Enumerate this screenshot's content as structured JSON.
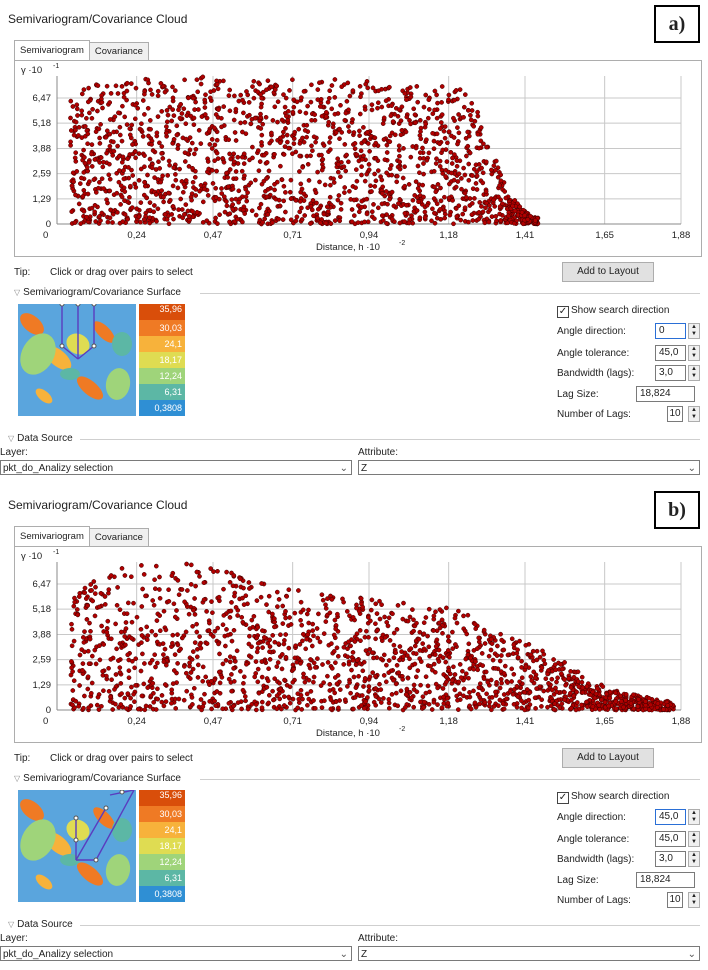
{
  "panels": [
    {
      "label": "a)",
      "title": "Semivariogram/Covariance Cloud",
      "tabs": [
        "Semivariogram",
        "Covariance"
      ],
      "chart": {
        "y_symbol": "γ ·10",
        "y_exp": "-1",
        "y_ticks": [
          "6,47",
          "5,18",
          "3,88",
          "2,59",
          "1,29",
          "0"
        ],
        "x_ticks": [
          "0,24",
          "0,47",
          "0,71",
          "0,94",
          "1,18",
          "1,41",
          "1,65",
          "1,88"
        ],
        "x_label": "Distance, h ·10",
        "x_exp": "-2"
      },
      "tip_label": "Tip:",
      "tip_text": "Click or drag over pairs to select",
      "add_layout": "Add to Layout",
      "surface_title": "Semivariogram/Covariance Surface",
      "legend": [
        "35,96",
        "30,03",
        "24,1",
        "18,17",
        "12,24",
        "6,31",
        "0,3808"
      ],
      "show_search": "Show search direction",
      "angle_direction_label": "Angle direction:",
      "angle_direction": "0",
      "angle_tolerance_label": "Angle tolerance:",
      "angle_tolerance": "45,0",
      "bandwidth_label": "Bandwidth (lags):",
      "bandwidth": "3,0",
      "lag_size_label": "Lag Size:",
      "lag_size": "18,824",
      "num_lags_label": "Number of Lags:",
      "num_lags": "10",
      "data_source_title": "Data Source",
      "layer_label": "Layer:",
      "layer_value": "pkt_do_Analizy selection",
      "attribute_label": "Attribute:",
      "attribute_value": "Z"
    },
    {
      "label": "b)",
      "title": "Semivariogram/Covariance Cloud",
      "tabs": [
        "Semivariogram",
        "Covariance"
      ],
      "chart": {
        "y_symbol": "γ ·10",
        "y_exp": "-1",
        "y_ticks": [
          "6,47",
          "5,18",
          "3,88",
          "2,59",
          "1,29",
          "0"
        ],
        "x_ticks": [
          "0,24",
          "0,47",
          "0,71",
          "0,94",
          "1,18",
          "1,41",
          "1,65",
          "1,88"
        ],
        "x_label": "Distance, h ·10",
        "x_exp": "-2"
      },
      "tip_label": "Tip:",
      "tip_text": "Click or drag over pairs to select",
      "add_layout": "Add to Layout",
      "surface_title": "Semivariogram/Covariance Surface",
      "legend": [
        "35,96",
        "30,03",
        "24,1",
        "18,17",
        "12,24",
        "6,31",
        "0,3808"
      ],
      "show_search": "Show search direction",
      "angle_direction_label": "Angle direction:",
      "angle_direction": "45,0",
      "angle_tolerance_label": "Angle tolerance:",
      "angle_tolerance": "45,0",
      "bandwidth_label": "Bandwidth (lags):",
      "bandwidth": "3,0",
      "lag_size_label": "Lag Size:",
      "lag_size": "18,824",
      "num_lags_label": "Number of Lags:",
      "num_lags": "10",
      "data_source_title": "Data Source",
      "layer_label": "Layer:",
      "layer_value": "pkt_do_Analizy selection",
      "attribute_label": "Attribute:",
      "attribute_value": "Z"
    }
  ],
  "colors": {
    "point_fill": "#b00000",
    "point_stroke": "#3a0000",
    "legend": [
      "#d94e0a",
      "#ef7a24",
      "#f7b23b",
      "#dfdc52",
      "#9fd47a",
      "#5cb7a5",
      "#2f8fd4"
    ]
  },
  "chart_data": [
    {
      "type": "scatter",
      "title": "",
      "xlabel": "Distance, h ·10^-2",
      "ylabel": "γ ·10^-1",
      "xlim": [
        0,
        1.88
      ],
      "ylim": [
        0,
        7.6
      ],
      "x_ticks": [
        0.24,
        0.47,
        0.71,
        0.94,
        1.18,
        1.41,
        1.65,
        1.88
      ],
      "y_ticks": [
        0,
        1.29,
        2.59,
        3.88,
        5.18,
        6.47
      ],
      "grid": true,
      "envelope_x": [
        0.04,
        0.1,
        0.2,
        0.3,
        0.4,
        0.5,
        0.6,
        0.7,
        0.8,
        0.9,
        1.0,
        1.1,
        1.2,
        1.27,
        1.3,
        1.36,
        1.4,
        1.45
      ],
      "envelope_ymax": [
        6.4,
        7.2,
        7.4,
        7.5,
        7.6,
        7.5,
        7.4,
        7.4,
        7.6,
        7.4,
        7.2,
        7.3,
        7.1,
        6.2,
        4.5,
        1.6,
        0.8,
        0.3
      ]
    },
    {
      "type": "scatter",
      "title": "",
      "xlabel": "Distance, h ·10^-2",
      "ylabel": "γ ·10^-1",
      "xlim": [
        0,
        1.88
      ],
      "ylim": [
        0,
        7.6
      ],
      "x_ticks": [
        0.24,
        0.47,
        0.71,
        0.94,
        1.18,
        1.41,
        1.65,
        1.88
      ],
      "y_ticks": [
        0,
        1.29,
        2.59,
        3.88,
        5.18,
        6.47
      ],
      "grid": true,
      "envelope_x": [
        0.04,
        0.1,
        0.2,
        0.3,
        0.4,
        0.5,
        0.6,
        0.7,
        0.8,
        0.9,
        1.0,
        1.1,
        1.2,
        1.3,
        1.4,
        1.5,
        1.6,
        1.7,
        1.8,
        1.86
      ],
      "envelope_ymax": [
        5.6,
        6.8,
        7.4,
        7.6,
        7.5,
        7.3,
        6.6,
        6.2,
        6.0,
        5.8,
        5.6,
        5.5,
        5.2,
        4.4,
        3.6,
        2.8,
        1.6,
        0.9,
        0.6,
        0.4
      ]
    }
  ]
}
